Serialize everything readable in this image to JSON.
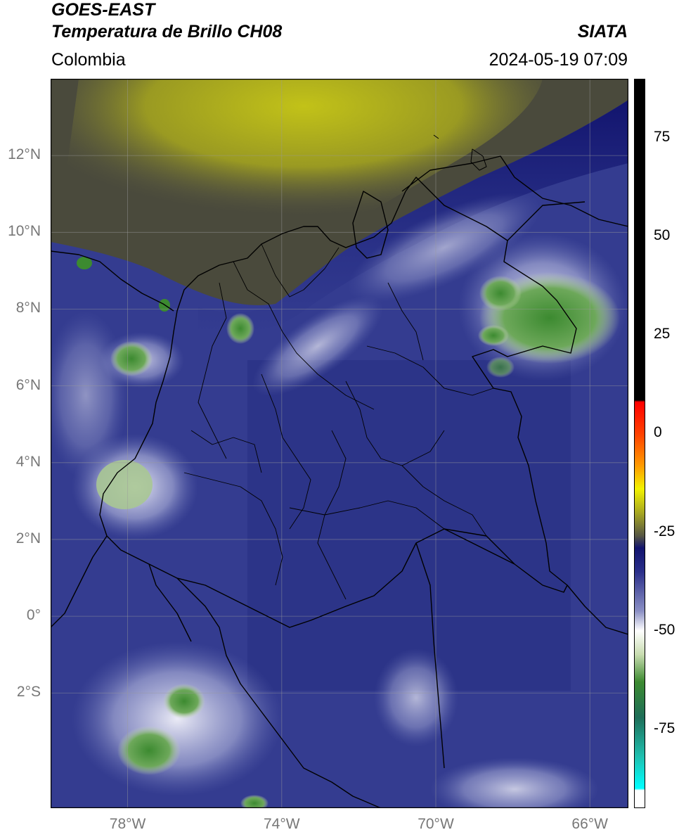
{
  "header": {
    "line1": "GOES-EAST",
    "line2": "Temperatura de Brillo CH08",
    "region": "Colombia",
    "org": "SIATA",
    "timestamp": "2024-05-19 07:09"
  },
  "map": {
    "lat_labels": [
      "12°N",
      "10°N",
      "8°N",
      "6°N",
      "4°N",
      "2°N",
      "0°",
      "2°S"
    ],
    "lon_labels": [
      "78°W",
      "74°W",
      "70°W",
      "66°W"
    ],
    "lat_values": [
      12,
      10,
      8,
      6,
      4,
      2,
      0,
      -2
    ],
    "lon_values": [
      -78,
      -74,
      -70,
      -66
    ],
    "extent": {
      "lon_min": -80,
      "lon_max": -65,
      "lat_min": -5,
      "lat_max": 14
    },
    "colors": {
      "deep_blue": "#1e2680",
      "mid_blue": "#3a4398",
      "light_blue": "#6a72b6",
      "white": "#f4f4fb",
      "olive": "#b3b31a",
      "dark_olive": "#4a4a3c",
      "green": "#3c8a30"
    }
  },
  "colorbar": {
    "tick_labels": [
      "75",
      "50",
      "25",
      "0",
      "-25",
      "-50",
      "-75"
    ],
    "tick_values": [
      75,
      50,
      25,
      0,
      -25,
      -50,
      -75
    ],
    "range": [
      -95,
      90
    ],
    "stops": [
      {
        "v": 90,
        "c": "#000000"
      },
      {
        "v": 8.5,
        "c": "#000000"
      },
      {
        "v": 8,
        "c": "#ff0000"
      },
      {
        "v": 0,
        "c": "#ff4000"
      },
      {
        "v": -8,
        "c": "#ff9900"
      },
      {
        "v": -14,
        "c": "#f2f200"
      },
      {
        "v": -20,
        "c": "#a8a820"
      },
      {
        "v": -26,
        "c": "#555544"
      },
      {
        "v": -29,
        "c": "#12146e"
      },
      {
        "v": -35,
        "c": "#2a2f8a"
      },
      {
        "v": -45,
        "c": "#8a8fc4"
      },
      {
        "v": -50,
        "c": "#ffffff"
      },
      {
        "v": -56,
        "c": "#c8dcb0"
      },
      {
        "v": -63,
        "c": "#3c8a30"
      },
      {
        "v": -72,
        "c": "#1e6e58"
      },
      {
        "v": -82,
        "c": "#1fc0b0"
      },
      {
        "v": -90,
        "c": "#00ffff"
      },
      {
        "v": -90.5,
        "c": "#ffffff"
      },
      {
        "v": -95,
        "c": "#ffffff"
      }
    ]
  }
}
